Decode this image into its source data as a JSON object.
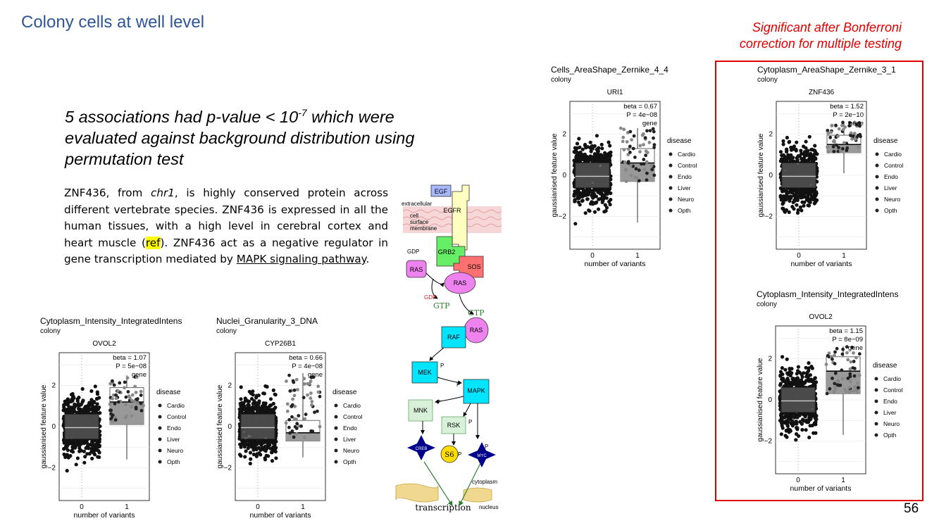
{
  "slide": {
    "title": "Colony cells at well level",
    "page_number": "56",
    "bonferroni_note": [
      "Significant after Bonferroni",
      "correction for multiple testing"
    ]
  },
  "headline": {
    "part1": "5 associations had p-value < 10",
    "exponent": "-7",
    "part2": " which were evaluated against background distribution using permutation test"
  },
  "paragraph": {
    "p1": "ZNF436, from ",
    "chr": "chr1",
    "p2": ", is highly conserved protein across different vertebrate species. ZNF436 is expressed in all the human tissues, with a high level in cerebral cortex and heart muscle (",
    "ref": "ref",
    "p3": "). ZNF436 act as a negative regulator in gene transcription mediated by ",
    "link": "MAPK signaling pathway",
    "p4": "."
  },
  "legend": {
    "title": "disease",
    "items": [
      "Cardio",
      "Control",
      "Endo",
      "Liver",
      "Neuro",
      "Opth"
    ]
  },
  "axes": {
    "xlabel": "number of variants",
    "ylabel": "gaussianised feature value",
    "xticks": [
      "0",
      "1"
    ],
    "yticks": [
      "2",
      "0",
      "-2"
    ]
  },
  "plots": [
    {
      "id": "p1",
      "title": "Cells_AreaShape_Zernike_4_4",
      "subtitle": "colony",
      "gene": "URI1",
      "beta": "beta = 0.67",
      "pvalue": "P = 4e−08",
      "tag": "gene"
    },
    {
      "id": "p2",
      "title": "Cytoplasm_AreaShape_Zernike_3_1",
      "subtitle": "colony",
      "gene": "ZNF436",
      "beta": "beta = 1.52",
      "pvalue": "P = 2e−10",
      "tag": "gene"
    },
    {
      "id": "p3",
      "title": "Cytoplasm_Intensity_IntegratedIntens",
      "subtitle": "colony",
      "gene": "OVOL2",
      "beta": "beta = 1.15",
      "pvalue": "P = 8e−09",
      "tag": "gene"
    },
    {
      "id": "p4",
      "title": "Cytoplasm_Intensity_IntegratedIntens",
      "subtitle": "colony",
      "gene": "OVOL2",
      "beta": "beta = 1.07",
      "pvalue": "P = 5e−08",
      "tag": "gene"
    },
    {
      "id": "p5",
      "title": "Nuclei_Granularity_3_DNA",
      "subtitle": "colony",
      "gene": "CYP26B1",
      "beta": "beta = 0.66",
      "pvalue": "P = 4e−08",
      "tag": "gene"
    }
  ],
  "pathway": {
    "labels": {
      "egf": "EGF",
      "egfr": "EGFR",
      "extracellular": "extracellular",
      "membrane": [
        "cell",
        "surface",
        "membrane"
      ],
      "grb2": "GRB2",
      "sos": "SOS",
      "gdp": "GDP",
      "ras": "RAS",
      "gtp": "GTP",
      "raf": "RAF",
      "mek": "MEK",
      "mapk": "MAPK",
      "mnk": "MNK",
      "rsk": "RSK",
      "creb": "CREB",
      "s6": "S6",
      "myc": "MYC",
      "p": "P",
      "cytoplasm": "cytoplasm",
      "nucleus": "nucleus",
      "transcription": "transcription"
    }
  },
  "colors": {
    "title": "#2f5597",
    "alert": "#e00000",
    "highlight": "#ffff00",
    "cyan": "#00e5ff",
    "pink": "#ee82ee",
    "green": "#66ee66",
    "sos": "#ff7070",
    "navy": "#00008b"
  }
}
